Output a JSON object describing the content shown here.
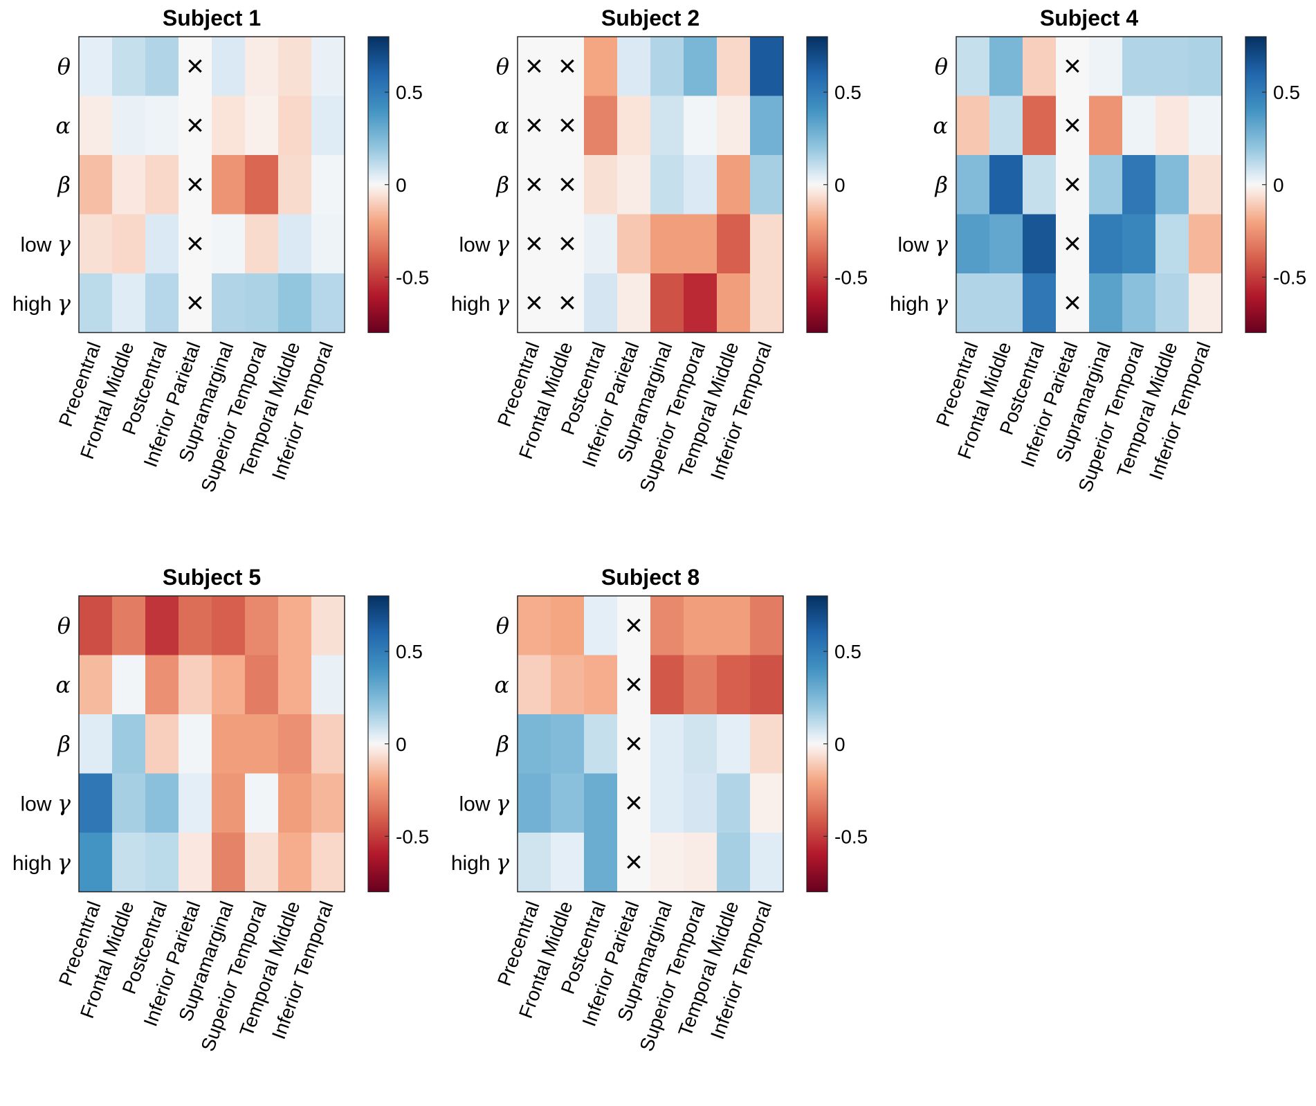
{
  "chart_data": {
    "type": "heatmap",
    "row_labels": [
      {
        "prefix": "",
        "symbol": "θ"
      },
      {
        "prefix": "",
        "symbol": "α"
      },
      {
        "prefix": "",
        "symbol": "β"
      },
      {
        "prefix": "low ",
        "symbol": "γ"
      },
      {
        "prefix": "high ",
        "symbol": "γ"
      }
    ],
    "column_labels": [
      "Precentral",
      "Frontal Middle",
      "Postcentral",
      "Inferior Parietal",
      "Supramarginal",
      "Superior Temporal",
      "Temporal Middle",
      "Inferior Temporal"
    ],
    "color_range": [
      -0.8,
      0.8
    ],
    "colorbar_ticks": [
      {
        "value": 0.5,
        "label": "0.5"
      },
      {
        "value": 0,
        "label": "0"
      },
      {
        "value": -0.5,
        "label": "-0.5"
      }
    ],
    "missing_marker": "×",
    "colormap": {
      "negative_end": "#67001f",
      "mid": "#f7f7f7",
      "positive_end": "#053061"
    },
    "subjects": [
      {
        "title": "Subject 1",
        "values": [
          [
            0.04,
            0.1,
            0.14,
            null,
            0.06,
            -0.03,
            -0.06,
            0.03
          ],
          [
            -0.03,
            0.03,
            0.02,
            null,
            -0.05,
            -0.02,
            -0.08,
            0.05
          ],
          [
            -0.14,
            -0.04,
            -0.08,
            null,
            -0.25,
            -0.38,
            -0.07,
            0.01
          ],
          [
            -0.06,
            -0.08,
            0.06,
            null,
            0.01,
            -0.07,
            0.06,
            0.02
          ],
          [
            0.12,
            0.05,
            0.13,
            null,
            0.14,
            0.15,
            0.2,
            0.13
          ]
        ]
      },
      {
        "title": "Subject 2",
        "values": [
          [
            null,
            null,
            -0.2,
            0.06,
            0.14,
            0.26,
            -0.08,
            0.64
          ],
          [
            null,
            null,
            -0.3,
            -0.05,
            0.08,
            0.01,
            -0.03,
            0.28
          ],
          [
            null,
            null,
            -0.06,
            -0.03,
            0.1,
            0.06,
            -0.22,
            0.16
          ],
          [
            null,
            null,
            0.03,
            -0.12,
            -0.22,
            -0.22,
            -0.4,
            -0.07
          ],
          [
            null,
            null,
            0.07,
            -0.03,
            -0.44,
            -0.55,
            -0.22,
            -0.07
          ]
        ]
      },
      {
        "title": "Subject 4",
        "values": [
          [
            0.1,
            0.26,
            -0.1,
            null,
            0.02,
            0.14,
            0.14,
            0.15
          ],
          [
            -0.12,
            0.1,
            -0.38,
            null,
            -0.25,
            0.02,
            -0.04,
            0.02
          ],
          [
            0.24,
            0.62,
            0.1,
            null,
            0.18,
            0.52,
            0.24,
            -0.06
          ],
          [
            0.36,
            0.32,
            0.66,
            null,
            0.5,
            0.46,
            0.12,
            -0.16
          ],
          [
            0.14,
            0.14,
            0.52,
            null,
            0.34,
            0.22,
            0.14,
            -0.03
          ]
        ]
      },
      {
        "title": "Subject 5",
        "values": [
          [
            -0.45,
            -0.32,
            -0.52,
            -0.36,
            -0.4,
            -0.28,
            -0.18,
            -0.06
          ],
          [
            -0.15,
            0.01,
            -0.26,
            -0.1,
            -0.18,
            -0.32,
            -0.18,
            0.03
          ],
          [
            0.05,
            0.18,
            -0.1,
            0.01,
            -0.22,
            -0.22,
            -0.26,
            -0.1
          ],
          [
            0.52,
            0.16,
            0.22,
            0.04,
            -0.24,
            0.01,
            -0.22,
            -0.16
          ],
          [
            0.4,
            0.1,
            0.12,
            -0.04,
            -0.3,
            -0.06,
            -0.18,
            -0.08
          ]
        ]
      },
      {
        "title": "Subject 8",
        "values": [
          [
            -0.18,
            -0.2,
            0.04,
            null,
            -0.28,
            -0.22,
            -0.22,
            -0.32
          ],
          [
            -0.1,
            -0.16,
            -0.18,
            null,
            -0.42,
            -0.32,
            -0.4,
            -0.44
          ],
          [
            0.26,
            0.24,
            0.1,
            null,
            0.05,
            0.08,
            0.04,
            -0.07
          ],
          [
            0.28,
            0.22,
            0.3,
            null,
            0.05,
            0.07,
            0.14,
            -0.02
          ],
          [
            0.08,
            0.04,
            0.3,
            null,
            -0.02,
            -0.03,
            0.16,
            0.05
          ]
        ]
      }
    ]
  }
}
